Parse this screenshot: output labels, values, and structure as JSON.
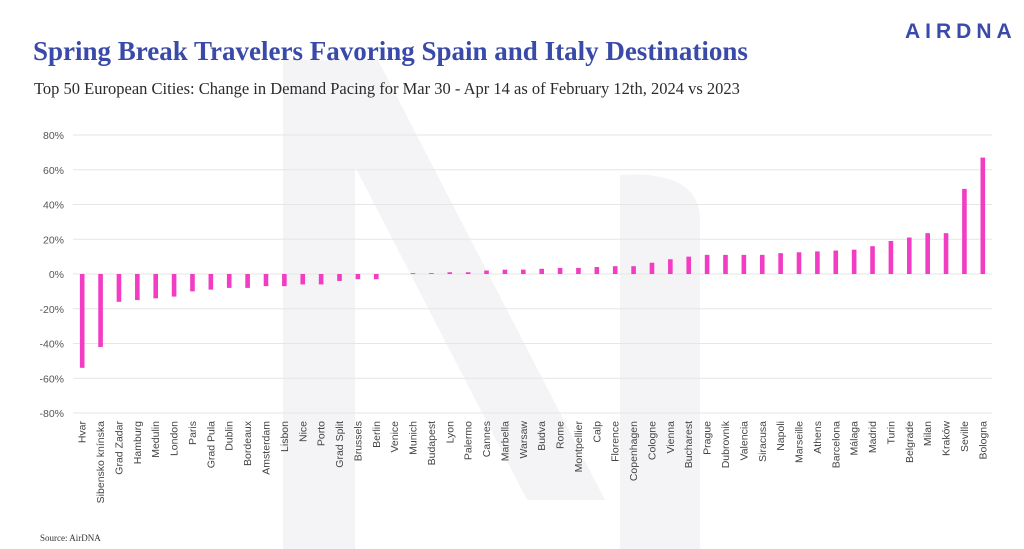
{
  "header": {
    "title": "Spring Break Travelers Favoring Spain and Italy Destinations",
    "subtitle": "Top 50 European Cities: Change in Demand Pacing for Mar 30 - Apr 14 as of February 12th, 2024 vs 2023",
    "brand": "AIRDNA"
  },
  "footer": {
    "source": "Source: AirDNA"
  },
  "colors": {
    "bar": "#f23cc4",
    "grid": "#e6e6e6",
    "title": "#3a4aa8",
    "watermark": "#f4f4f6"
  },
  "chart_data": {
    "type": "bar",
    "title": "Spring Break Travelers Favoring Spain and Italy Destinations",
    "subtitle": "Top 50 European Cities: Change in Demand Pacing for Mar 30 - Apr 14 as of February 12th, 2024 vs 2023",
    "xlabel": "",
    "ylabel": "",
    "ylim": [
      -80,
      80
    ],
    "yticks": [
      80,
      60,
      40,
      20,
      0,
      -20,
      -40,
      -60,
      -80
    ],
    "ytick_labels": [
      "80%",
      "60%",
      "40%",
      "20%",
      "0%",
      "-20%",
      "-40%",
      "-60%",
      "-80%"
    ],
    "grid": true,
    "legend": "none",
    "categories": [
      "Hvar",
      "Sibensko knínska",
      "Grad Zadar",
      "Hamburg",
      "Medulin",
      "London",
      "Paris",
      "Grad Pula",
      "Dublin",
      "Bordeaux",
      "Amsterdam",
      "Lisbon",
      "Nice",
      "Porto",
      "Grad Split",
      "Brussels",
      "Berlin",
      "Venice",
      "Munich",
      "Budapest",
      "Lyon",
      "Palermo",
      "Cannes",
      "Marbella",
      "Warsaw",
      "Budva",
      "Rome",
      "Montpellier",
      "Calp",
      "Florence",
      "Copenhagen",
      "Cologne",
      "Vienna",
      "Bucharest",
      "Prague",
      "Dubrovnik",
      "Valencia",
      "Siracusa",
      "Napoli",
      "Marseille",
      "Athens",
      "Barcelona",
      "Málaga",
      "Madrid",
      "Turin",
      "Belgrade",
      "Milan",
      "Kraków",
      "Seville",
      "Bologna"
    ],
    "values": [
      -54,
      -42,
      -16,
      -15,
      -14,
      -13,
      -10,
      -9,
      -8,
      -8,
      -7,
      -7,
      -6,
      -6,
      -4,
      -3,
      -3,
      0,
      0.5,
      0.5,
      1,
      1,
      2,
      2.5,
      2.5,
      3,
      3.5,
      3.5,
      4,
      4.5,
      4.5,
      6.5,
      8.5,
      10,
      11,
      11,
      11,
      11,
      12,
      12.5,
      13,
      13.5,
      14,
      16,
      19,
      21,
      23.5,
      23.5,
      49,
      67
    ]
  }
}
